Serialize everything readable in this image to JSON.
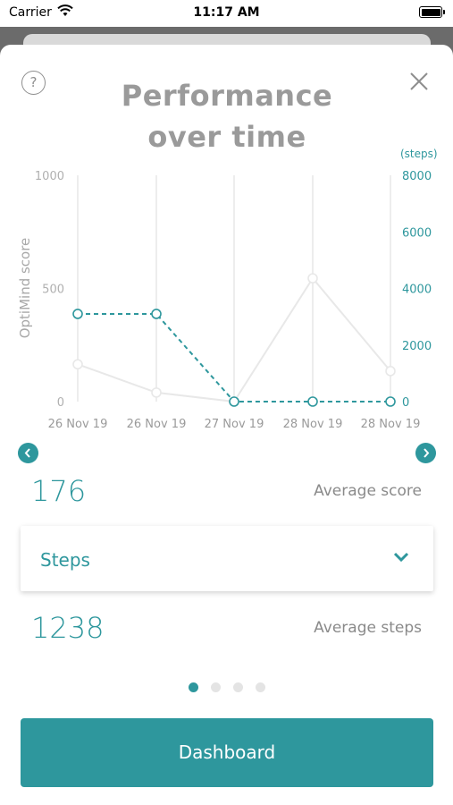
{
  "status_bar": {
    "carrier": "Carrier",
    "time": "11:17 AM"
  },
  "header": {
    "title_line1": "Performance",
    "title_line2": "over time"
  },
  "chart_data": {
    "type": "line",
    "categories": [
      "26 Nov 19",
      "26 Nov 19",
      "27 Nov 19",
      "28 Nov 19",
      "28 Nov 19"
    ],
    "series": [
      {
        "values": [
          165,
          40,
          0,
          545,
          135
        ],
        "axis": "left",
        "color": "#e8e8e8",
        "style": "solid"
      },
      {
        "values": [
          3100,
          3100,
          0,
          0,
          0
        ],
        "axis": "right",
        "color": "#2e979d",
        "style": "dashed"
      }
    ],
    "ylabel": "OptiMind score",
    "ylabel_right": "(steps)",
    "ylim": [
      0,
      1000
    ],
    "ylim_right": [
      0,
      8000
    ],
    "yticks_left": [
      "0",
      "500",
      "1000"
    ],
    "yticks_right": [
      "0",
      "2000",
      "4000",
      "6000",
      "8000"
    ],
    "grid": "vertical"
  },
  "stats": {
    "average_score_value": "176",
    "average_score_label": "Average score",
    "metric_selected": "Steps",
    "average_steps_value": "1238",
    "average_steps_label": "Average steps"
  },
  "pagination": {
    "pages": 4,
    "active": 0
  },
  "footer": {
    "dashboard_label": "Dashboard"
  },
  "colors": {
    "accent": "#2e979d",
    "muted_text": "#8a8a8a",
    "title": "#9a9a9a"
  }
}
